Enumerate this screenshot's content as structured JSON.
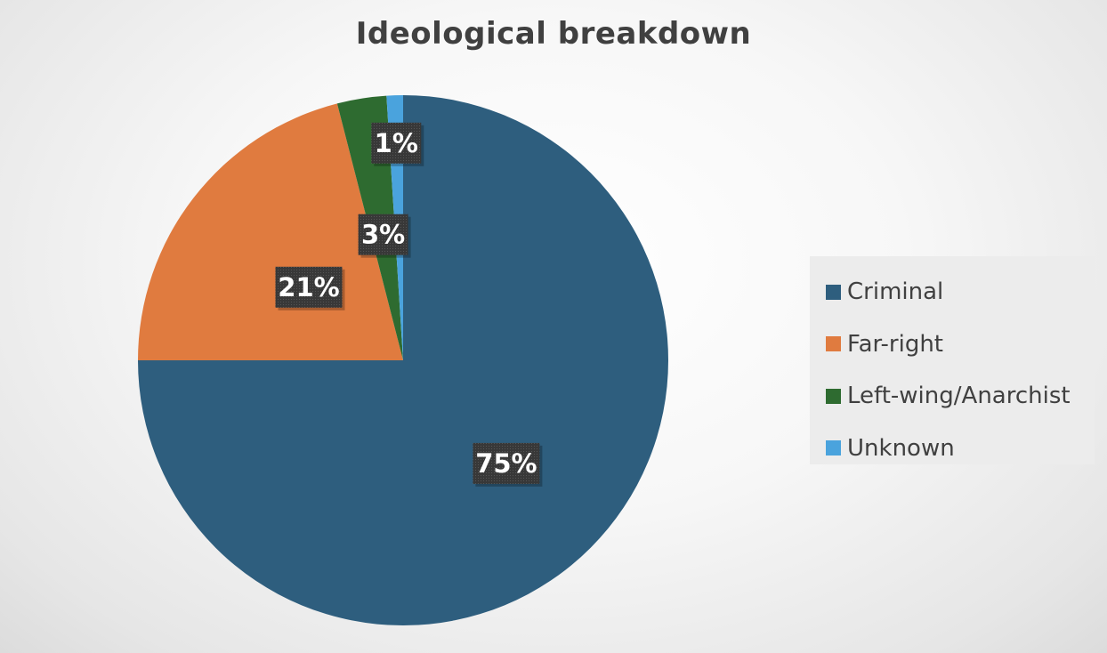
{
  "chart_data": {
    "type": "pie",
    "title": "Ideological breakdown",
    "categories": [
      "Criminal",
      "Far-right",
      "Left-wing/Anarchist",
      "Unknown"
    ],
    "values": [
      75,
      21,
      3,
      1
    ],
    "data_labels": [
      "75%",
      "21%",
      "3%",
      "1%"
    ],
    "colors": [
      "#2e5e7e",
      "#e07b3f",
      "#2e6b30",
      "#4aa3dd"
    ],
    "legend_placement": "right"
  }
}
